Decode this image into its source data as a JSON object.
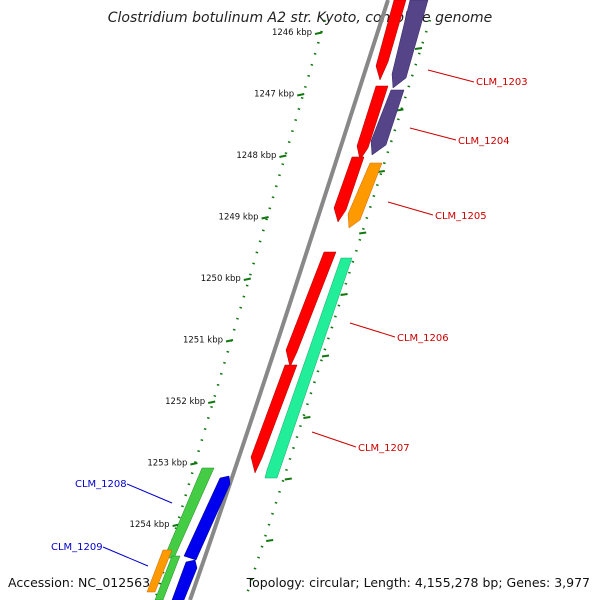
{
  "title": "Clostridium botulinum A2 str. Kyoto, complete genome",
  "footer": {
    "accession": "Accession: NC_012563",
    "summary": "Topology: circular; Length: 4,155,278 bp; Genes: 3,977"
  },
  "ticks": [
    "1246 kbp",
    "1247 kbp",
    "1248 kbp",
    "1249 kbp",
    "1250 kbp",
    "1251 kbp",
    "1252 kbp",
    "1253 kbp",
    "1254 kbp"
  ],
  "colors": {
    "red": "#ff0000",
    "purple": "#554488",
    "orange": "#ff9900",
    "teal": "#22ee99",
    "green": "#44cc44",
    "blue": "#0000ee",
    "label_red": "#cc0000",
    "label_blue": "#0000cc",
    "backbone": "#888888",
    "tick_green": "#117711"
  },
  "genes": [
    {
      "label": "CLM_1203",
      "strand": "reverse"
    },
    {
      "label": "CLM_1204",
      "strand": "reverse"
    },
    {
      "label": "CLM_1205",
      "strand": "reverse"
    },
    {
      "label": "CLM_1206",
      "strand": "reverse"
    },
    {
      "label": "CLM_1207",
      "strand": "reverse"
    },
    {
      "label": "CLM_1208",
      "strand": "forward"
    },
    {
      "label": "CLM_1209",
      "strand": "forward"
    }
  ]
}
